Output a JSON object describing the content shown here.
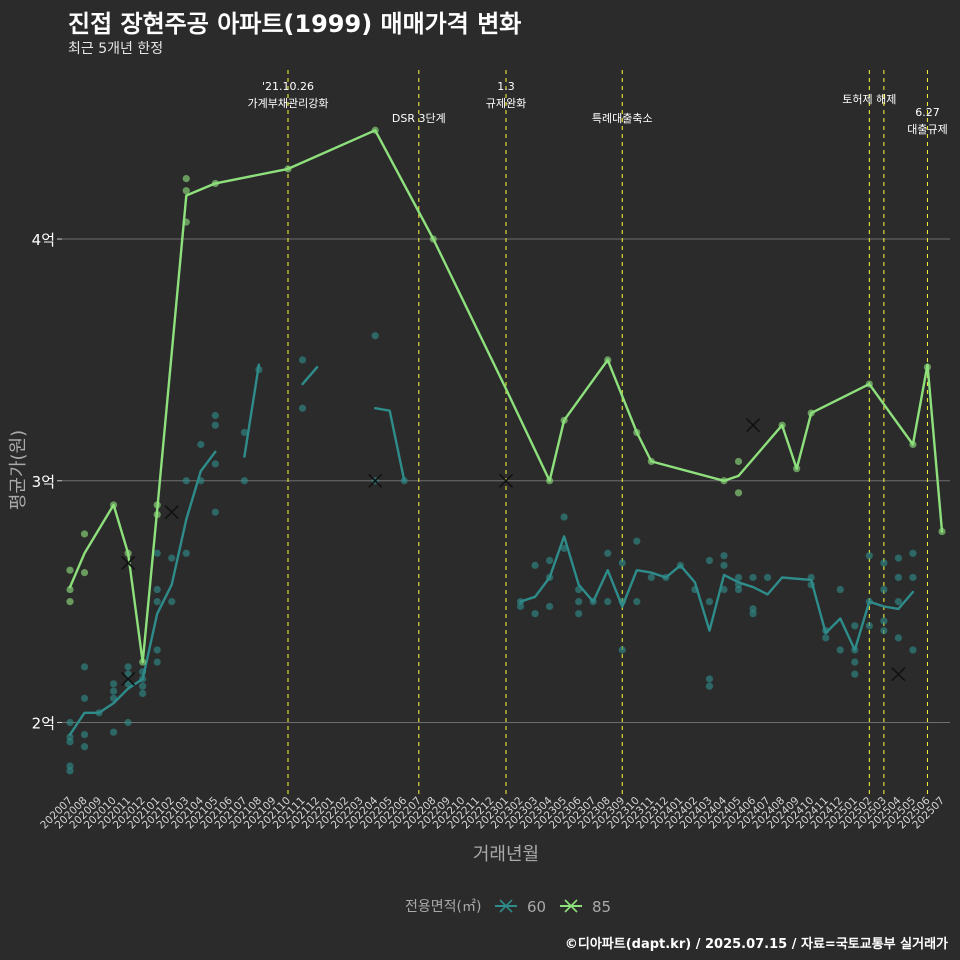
{
  "chart_data": {
    "type": "line",
    "title": "진접 장현주공 아파트(1999) 매매가격 변화",
    "subtitle": "최근 5개년 한정",
    "caption": "©디아파트(dapt.kr) / 2025.07.15 / 자료=국토교통부 실거래가",
    "xlabel": "거래년월",
    "ylabel": "평균가(원)",
    "ylim": [
      1.7,
      4.72
    ],
    "yticks": [
      {
        "value": 2,
        "label": "2억"
      },
      {
        "value": 3,
        "label": "3억"
      },
      {
        "value": 4,
        "label": "4억"
      }
    ],
    "x": [
      "202007",
      "202008",
      "202009",
      "202010",
      "202011",
      "202012",
      "202101",
      "202102",
      "202103",
      "202104",
      "202105",
      "202106",
      "202107",
      "202108",
      "202109",
      "202110",
      "202111",
      "202112",
      "202201",
      "202202",
      "202203",
      "202204",
      "202205",
      "202206",
      "202207",
      "202208",
      "202209",
      "202210",
      "202211",
      "202212",
      "202301",
      "202302",
      "202303",
      "202304",
      "202305",
      "202306",
      "202307",
      "202308",
      "202309",
      "202310",
      "202311",
      "202312",
      "202401",
      "202402",
      "202403",
      "202404",
      "202405",
      "202406",
      "202407",
      "202408",
      "202409",
      "202410",
      "202411",
      "202412",
      "202501",
      "202502",
      "202503",
      "202504",
      "202505",
      "202506",
      "202507"
    ],
    "legend_title": "전용면적(㎡)",
    "colors": {
      "s60": "#2e8c8a",
      "s85": "#8ee07c",
      "event": "#e8e83a",
      "grid": "#6e6e6e",
      "text": "#ffffff",
      "muted": "#a9a9a9"
    },
    "series": [
      {
        "name": "60",
        "line_segments": [
          [
            [
              0,
              1.95
            ],
            [
              1,
              2.04
            ],
            [
              2,
              2.04
            ],
            [
              3,
              2.08
            ],
            [
              4,
              2.14
            ],
            [
              5,
              2.18
            ],
            [
              6,
              2.45
            ],
            [
              7,
              2.57
            ],
            [
              8,
              2.84
            ],
            [
              9,
              3.04
            ],
            [
              10,
              3.12
            ]
          ],
          [
            [
              12,
              3.1
            ],
            [
              13,
              3.48
            ]
          ],
          [
            [
              16,
              3.4
            ],
            [
              17,
              3.47
            ]
          ],
          [
            [
              21,
              3.3
            ],
            [
              22,
              3.29
            ],
            [
              23,
              3.0
            ]
          ],
          [
            [
              31,
              2.5
            ],
            [
              32,
              2.52
            ],
            [
              33,
              2.6
            ],
            [
              34,
              2.77
            ],
            [
              35,
              2.57
            ],
            [
              36,
              2.5
            ],
            [
              37,
              2.63
            ],
            [
              38,
              2.48
            ],
            [
              39,
              2.63
            ],
            [
              40,
              2.62
            ],
            [
              41,
              2.6
            ],
            [
              42,
              2.65
            ],
            [
              43,
              2.58
            ],
            [
              44,
              2.38
            ],
            [
              45,
              2.61
            ],
            [
              46,
              2.58
            ],
            [
              47,
              2.56
            ],
            [
              48,
              2.53
            ],
            [
              49,
              2.6
            ],
            [
              51,
              2.59
            ],
            [
              52,
              2.37
            ],
            [
              53,
              2.43
            ],
            [
              54,
              2.3
            ],
            [
              55,
              2.5
            ],
            [
              56,
              2.48
            ],
            [
              57,
              2.47
            ],
            [
              58,
              2.54
            ]
          ]
        ],
        "points": [
          [
            0,
            1.8
          ],
          [
            0,
            1.82
          ],
          [
            0,
            1.92
          ],
          [
            0,
            1.94
          ],
          [
            0,
            2.0
          ],
          [
            1,
            1.9
          ],
          [
            1,
            1.95
          ],
          [
            1,
            2.1
          ],
          [
            1,
            2.23
          ],
          [
            2,
            2.04
          ],
          [
            3,
            1.96
          ],
          [
            3,
            2.1
          ],
          [
            3,
            2.13
          ],
          [
            3,
            2.16
          ],
          [
            4,
            2.0
          ],
          [
            4,
            2.16
          ],
          [
            4,
            2.2
          ],
          [
            4,
            2.23
          ],
          [
            5,
            2.12
          ],
          [
            5,
            2.15
          ],
          [
            5,
            2.18
          ],
          [
            5,
            2.21
          ],
          [
            6,
            2.25
          ],
          [
            6,
            2.3
          ],
          [
            6,
            2.5
          ],
          [
            6,
            2.55
          ],
          [
            6,
            2.7
          ],
          [
            7,
            2.5
          ],
          [
            7,
            2.68
          ],
          [
            8,
            2.7
          ],
          [
            8,
            3.0
          ],
          [
            9,
            3.0
          ],
          [
            9,
            3.15
          ],
          [
            10,
            2.87
          ],
          [
            10,
            3.07
          ],
          [
            10,
            3.23
          ],
          [
            10,
            3.27
          ],
          [
            12,
            3.0
          ],
          [
            12,
            3.2
          ],
          [
            13,
            3.46
          ],
          [
            16,
            3.3
          ],
          [
            16,
            3.5
          ],
          [
            21,
            3.0
          ],
          [
            21,
            3.6
          ],
          [
            23,
            3.0
          ],
          [
            31,
            2.48
          ],
          [
            31,
            2.5
          ],
          [
            32,
            2.45
          ],
          [
            32,
            2.65
          ],
          [
            33,
            2.48
          ],
          [
            33,
            2.6
          ],
          [
            33,
            2.67
          ],
          [
            34,
            2.72
          ],
          [
            34,
            2.85
          ],
          [
            35,
            2.45
          ],
          [
            35,
            2.5
          ],
          [
            35,
            2.55
          ],
          [
            36,
            2.5
          ],
          [
            37,
            2.5
          ],
          [
            37,
            2.7
          ],
          [
            38,
            2.3
          ],
          [
            38,
            2.5
          ],
          [
            38,
            2.66
          ],
          [
            39,
            2.5
          ],
          [
            39,
            2.75
          ],
          [
            40,
            2.6
          ],
          [
            41,
            2.6
          ],
          [
            42,
            2.65
          ],
          [
            43,
            2.55
          ],
          [
            44,
            2.15
          ],
          [
            44,
            2.18
          ],
          [
            44,
            2.5
          ],
          [
            44,
            2.67
          ],
          [
            45,
            2.55
          ],
          [
            45,
            2.65
          ],
          [
            45,
            2.69
          ],
          [
            46,
            2.55
          ],
          [
            46,
            2.57
          ],
          [
            46,
            2.6
          ],
          [
            47,
            2.45
          ],
          [
            47,
            2.47
          ],
          [
            47,
            2.6
          ],
          [
            48,
            2.6
          ],
          [
            51,
            2.57
          ],
          [
            51,
            2.6
          ],
          [
            52,
            2.35
          ],
          [
            52,
            2.38
          ],
          [
            53,
            2.3
          ],
          [
            53,
            2.55
          ],
          [
            54,
            2.2
          ],
          [
            54,
            2.25
          ],
          [
            54,
            2.3
          ],
          [
            54,
            2.4
          ],
          [
            55,
            2.4
          ],
          [
            55,
            2.5
          ],
          [
            55,
            2.69
          ],
          [
            56,
            2.38
          ],
          [
            56,
            2.42
          ],
          [
            56,
            2.55
          ],
          [
            56,
            2.66
          ],
          [
            57,
            2.35
          ],
          [
            57,
            2.5
          ],
          [
            57,
            2.6
          ],
          [
            57,
            2.68
          ],
          [
            58,
            2.3
          ],
          [
            58,
            2.6
          ],
          [
            58,
            2.7
          ]
        ],
        "cancelled": [
          [
            4,
            2.18
          ],
          [
            7,
            2.87
          ],
          [
            21,
            3.0
          ],
          [
            57,
            2.2
          ]
        ]
      },
      {
        "name": "85",
        "line_segments": [
          [
            [
              0,
              2.56
            ],
            [
              1,
              2.7
            ],
            [
              3,
              2.9
            ],
            [
              4,
              2.7
            ],
            [
              5,
              2.25
            ],
            [
              6,
              2.88
            ],
            [
              8,
              4.18
            ],
            [
              10,
              4.23
            ],
            [
              15,
              4.29
            ],
            [
              21,
              4.45
            ],
            [
              25,
              4.0
            ],
            [
              30,
              3.38
            ],
            [
              33,
              3.0
            ],
            [
              34,
              3.25
            ],
            [
              37,
              3.5
            ],
            [
              39,
              3.2
            ],
            [
              40,
              3.08
            ],
            [
              45,
              3.0
            ],
            [
              46,
              3.02
            ],
            [
              49,
              3.23
            ],
            [
              50,
              3.05
            ],
            [
              51,
              3.28
            ],
            [
              55,
              3.4
            ],
            [
              58,
              3.15
            ],
            [
              59,
              3.48
            ],
            [
              60,
              2.79
            ]
          ]
        ],
        "points": [
          [
            0,
            2.5
          ],
          [
            0,
            2.55
          ],
          [
            0,
            2.63
          ],
          [
            1,
            2.62
          ],
          [
            1,
            2.78
          ],
          [
            3,
            2.9
          ],
          [
            4,
            2.7
          ],
          [
            5,
            2.25
          ],
          [
            6,
            2.86
          ],
          [
            6,
            2.9
          ],
          [
            8,
            4.07
          ],
          [
            8,
            4.2
          ],
          [
            8,
            4.25
          ],
          [
            10,
            4.23
          ],
          [
            15,
            4.29
          ],
          [
            21,
            4.45
          ],
          [
            25,
            4.0
          ],
          [
            33,
            3.0
          ],
          [
            34,
            3.25
          ],
          [
            37,
            3.5
          ],
          [
            39,
            3.2
          ],
          [
            40,
            3.08
          ],
          [
            45,
            3.0
          ],
          [
            46,
            2.95
          ],
          [
            46,
            3.08
          ],
          [
            49,
            3.23
          ],
          [
            50,
            3.05
          ],
          [
            51,
            3.28
          ],
          [
            55,
            3.4
          ],
          [
            58,
            3.15
          ],
          [
            59,
            3.47
          ],
          [
            60,
            2.79
          ]
        ],
        "cancelled": [
          [
            4,
            2.66
          ],
          [
            30,
            3.0
          ],
          [
            47,
            3.23
          ]
        ]
      }
    ],
    "events": [
      {
        "x": 15,
        "lines": [
          "'21.10.26",
          "가계부채관리강화"
        ],
        "level": 0
      },
      {
        "x": 24,
        "lines": [
          "DSR 3단계"
        ],
        "level": 1
      },
      {
        "x": 30,
        "lines": [
          "1.3",
          "규제완화"
        ],
        "level": 0
      },
      {
        "x": 38,
        "lines": [
          "특례대출축소"
        ],
        "level": 1
      },
      {
        "x": 55,
        "lines": [
          "토허제 해제"
        ],
        "level": 2
      },
      {
        "x": 56,
        "lines": [],
        "level": 2
      },
      {
        "x": 59,
        "lines": [
          "6.27",
          "대출규제"
        ],
        "level": 3
      }
    ]
  }
}
